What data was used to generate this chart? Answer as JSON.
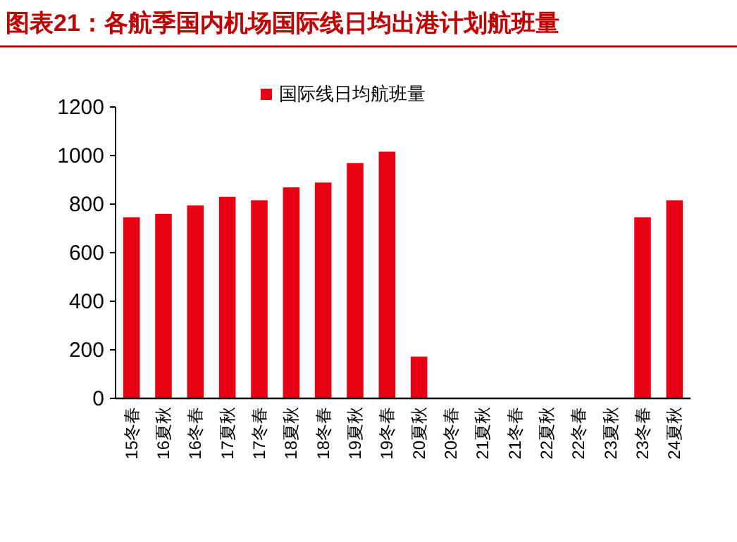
{
  "chart_data": {
    "type": "bar",
    "title": "图表21：各航季国内机场国际线日均出港计划航班量",
    "categories": [
      "15冬春",
      "16夏秋",
      "16冬春",
      "17夏秋",
      "17冬春",
      "18夏秋",
      "18冬春",
      "19夏秋",
      "19冬春",
      "20夏秋",
      "20冬春",
      "21夏秋",
      "21冬春",
      "22夏秋",
      "22冬春",
      "23夏秋",
      "23冬春",
      "24夏秋"
    ],
    "series": [
      {
        "name": "国际线日均航班量",
        "color": "#e60012",
        "values": [
          746,
          760,
          795,
          830,
          816,
          869,
          889,
          969,
          1016,
          172,
          0,
          0,
          0,
          0,
          0,
          0,
          746,
          816
        ]
      }
    ],
    "ylim": [
      0,
      1200
    ],
    "yticks": [
      0,
      200,
      400,
      600,
      800,
      1000,
      1200
    ],
    "grid": false,
    "legend": "top"
  }
}
